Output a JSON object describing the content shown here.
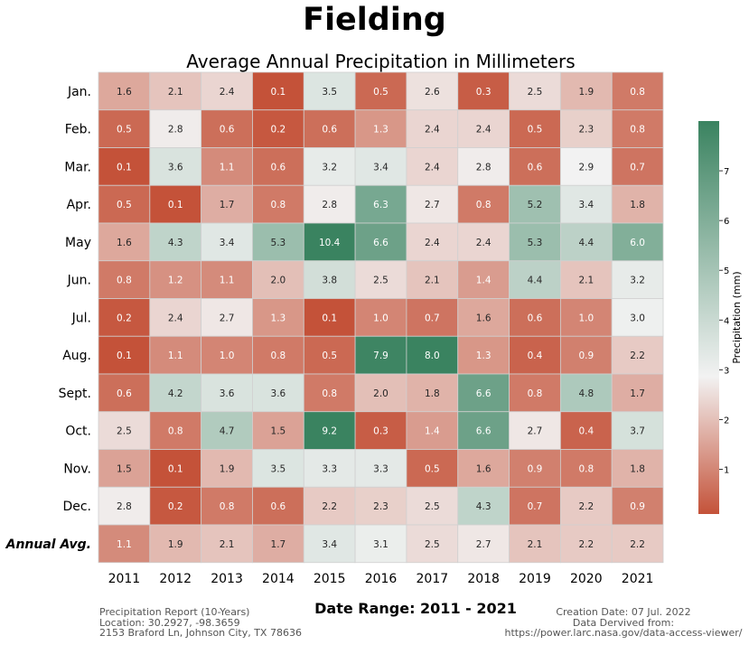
{
  "header": {
    "location_name": "Fielding"
  },
  "chart_data": {
    "type": "heatmap",
    "title": "Average Annual Precipitation in Millimeters",
    "xlabel": "",
    "ylabel": "",
    "x": [
      "2011",
      "2012",
      "2013",
      "2014",
      "2015",
      "2016",
      "2017",
      "2018",
      "2019",
      "2020",
      "2021"
    ],
    "y": [
      "Jan.",
      "Feb.",
      "Mar.",
      "Apr.",
      "May",
      "Jun.",
      "Jul.",
      "Aug.",
      "Sept.",
      "Oct.",
      "Nov.",
      "Dec.",
      "Annual Avg."
    ],
    "values": [
      [
        1.6,
        2.1,
        2.4,
        0.1,
        3.5,
        0.5,
        2.6,
        0.3,
        2.5,
        1.9,
        0.8
      ],
      [
        0.5,
        2.8,
        0.6,
        0.2,
        0.6,
        1.3,
        2.4,
        2.4,
        0.5,
        2.3,
        0.8
      ],
      [
        0.1,
        3.6,
        1.1,
        0.6,
        3.2,
        3.4,
        2.4,
        2.8,
        0.6,
        2.9,
        0.7
      ],
      [
        0.5,
        0.1,
        1.7,
        0.8,
        2.8,
        6.3,
        2.7,
        0.8,
        5.2,
        3.4,
        1.8
      ],
      [
        1.6,
        4.3,
        3.4,
        5.3,
        10.4,
        6.6,
        2.4,
        2.4,
        5.3,
        4.4,
        6.0
      ],
      [
        0.8,
        1.2,
        1.1,
        2.0,
        3.8,
        2.5,
        2.1,
        1.4,
        4.4,
        2.1,
        3.2
      ],
      [
        0.2,
        2.4,
        2.7,
        1.3,
        0.1,
        1.0,
        0.7,
        1.6,
        0.6,
        1.0,
        3.0
      ],
      [
        0.1,
        1.1,
        1.0,
        0.8,
        0.5,
        7.9,
        8.0,
        1.3,
        0.4,
        0.9,
        2.2
      ],
      [
        0.6,
        4.2,
        3.6,
        3.6,
        0.8,
        2.0,
        1.8,
        6.6,
        0.8,
        4.8,
        1.7
      ],
      [
        2.5,
        0.8,
        4.7,
        1.5,
        9.2,
        0.3,
        1.4,
        6.6,
        2.7,
        0.4,
        3.7
      ],
      [
        1.5,
        0.1,
        1.9,
        3.5,
        3.3,
        3.3,
        0.5,
        1.6,
        0.9,
        0.8,
        1.8
      ],
      [
        2.8,
        0.2,
        0.8,
        0.6,
        2.2,
        2.3,
        2.5,
        4.3,
        0.7,
        2.2,
        0.9
      ],
      [
        1.1,
        1.9,
        2.1,
        1.7,
        3.4,
        3.1,
        2.5,
        2.7,
        2.1,
        2.2,
        2.2
      ]
    ],
    "value_labels": [
      [
        "1.6",
        "2.1",
        "2.4",
        "0.1",
        "3.5",
        "0.5",
        "2.6",
        "0.3",
        "2.5",
        "1.9",
        "0.8"
      ],
      [
        "0.5",
        "2.8",
        "0.6",
        "0.2",
        "0.6",
        "1.3",
        "2.4",
        "2.4",
        "0.5",
        "2.3",
        "0.8"
      ],
      [
        "0.1",
        "3.6",
        "1.1",
        "0.6",
        "3.2",
        "3.4",
        "2.4",
        "2.8",
        "0.6",
        "2.9",
        "0.7"
      ],
      [
        "0.5",
        "0.1",
        "1.7",
        "0.8",
        "2.8",
        "6.3",
        "2.7",
        "0.8",
        "5.2",
        "3.4",
        "1.8"
      ],
      [
        "1.6",
        "4.3",
        "3.4",
        "5.3",
        "10.4",
        "6.6",
        "2.4",
        "2.4",
        "5.3",
        "4.4",
        "6.0"
      ],
      [
        "0.8",
        "1.2",
        "1.1",
        "2.0",
        "3.8",
        "2.5",
        "2.1",
        "1.4",
        "4.4",
        "2.1",
        "3.2"
      ],
      [
        "0.2",
        "2.4",
        "2.7",
        "1.3",
        "0.1",
        "1.0",
        "0.7",
        "1.6",
        "0.6",
        "1.0",
        "3.0"
      ],
      [
        "0.1",
        "1.1",
        "1.0",
        "0.8",
        "0.5",
        "7.9",
        "8.0",
        "1.3",
        "0.4",
        "0.9",
        "2.2"
      ],
      [
        "0.6",
        "4.2",
        "3.6",
        "3.6",
        "0.8",
        "2.0",
        "1.8",
        "6.6",
        "0.8",
        "4.8",
        "1.7"
      ],
      [
        "2.5",
        "0.8",
        "4.7",
        "1.5",
        "9.2",
        "0.3",
        "1.4",
        "6.6",
        "2.7",
        "0.4",
        "3.7"
      ],
      [
        "1.5",
        "0.1",
        "1.9",
        "3.5",
        "3.3",
        "3.3",
        "0.5",
        "1.6",
        "0.9",
        "0.8",
        "1.8"
      ],
      [
        "2.8",
        "0.2",
        "0.8",
        "0.6",
        "2.2",
        "2.3",
        "2.5",
        "4.3",
        "0.7",
        "2.2",
        "0.9"
      ],
      [
        "1.1",
        "1.9",
        "2.1",
        "1.7",
        "3.4",
        "3.1",
        "2.5",
        "2.7",
        "2.1",
        "2.2",
        "2.2"
      ]
    ],
    "colorbar": {
      "label": "Precipitation (mm)",
      "range": [
        0.1,
        8.0
      ],
      "ticks": [
        "1",
        "2",
        "3",
        "4",
        "5",
        "6",
        "7"
      ],
      "tick_values": [
        1,
        2,
        3,
        4,
        5,
        6,
        7
      ],
      "center": 2.9,
      "colors": {
        "low": "#c45239",
        "mid": "#f2f2f2",
        "high": "#3a8360"
      }
    },
    "grid": true
  },
  "footer": {
    "report_line": "Precipitation Report (10-Years)",
    "location_line": "Location: 30.2927, -98.3659",
    "address_line": "2153 Braford Ln, Johnson City, TX 78636",
    "date_range": "Date Range: 2011 - 2021",
    "creation_line": "Creation Date: 07 Jul. 2022",
    "source_line": "Data Dervived from:",
    "url_line": "https://power.larc.nasa.gov/data-access-viewer/"
  }
}
